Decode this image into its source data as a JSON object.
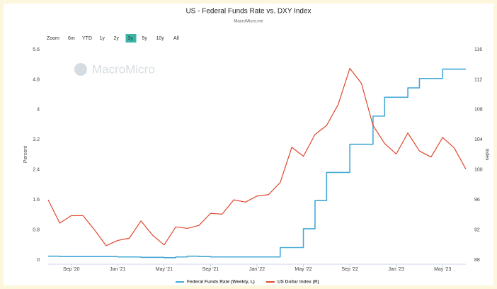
{
  "chart_data": {
    "type": "line",
    "title": "US - Federal Funds Rate vs. DXY Index",
    "subtitle": "MacroMicro.me",
    "watermark": "MacroMicro",
    "range_selector": {
      "label": "Zoom",
      "buttons": [
        "6m",
        "YTD",
        "1y",
        "2y",
        "3y",
        "5y",
        "10y",
        "All"
      ],
      "selected": 4,
      "selected_color": "#3ab5a5"
    },
    "ylabel": "Percent",
    "y2label": "Index",
    "x": [
      "2020-07",
      "2020-08",
      "2020-09",
      "2020-10",
      "2020-11",
      "2020-12",
      "2021-01",
      "2021-02",
      "2021-03",
      "2021-04",
      "2021-05",
      "2021-06",
      "2021-07",
      "2021-08",
      "2021-09",
      "2021-10",
      "2021-11",
      "2021-12",
      "2022-01",
      "2022-02",
      "2022-03",
      "2022-04",
      "2022-05",
      "2022-06",
      "2022-07",
      "2022-08",
      "2022-09",
      "2022-10",
      "2022-11",
      "2022-12",
      "2023-01",
      "2023-02",
      "2023-03",
      "2023-04",
      "2023-05",
      "2023-06",
      "2023-07"
    ],
    "xlim": [
      "2020-07",
      "2023-07"
    ],
    "xticks": [
      {
        "value": "2020-09",
        "label": "Sep '20"
      },
      {
        "value": "2021-01",
        "label": "Jan '21"
      },
      {
        "value": "2021-05",
        "label": "May '21"
      },
      {
        "value": "2021-09",
        "label": "Sep '21"
      },
      {
        "value": "2022-01",
        "label": "Jan '22"
      },
      {
        "value": "2022-05",
        "label": "May '22"
      },
      {
        "value": "2022-09",
        "label": "Sep '22"
      },
      {
        "value": "2023-01",
        "label": "Jan '23"
      },
      {
        "value": "2023-05",
        "label": "May '23"
      }
    ],
    "ylim": [
      0,
      5.6
    ],
    "yticks": [
      0,
      0.8,
      1.6,
      2.4,
      3.2,
      4,
      4.8,
      5.6
    ],
    "y2lim": [
      88,
      116
    ],
    "y2ticks": [
      88,
      92,
      96,
      100,
      104,
      108,
      112,
      116
    ],
    "grid": false,
    "series": [
      {
        "name": "Federal Funds Rate (Weekly, L)",
        "color": "#45a9d6",
        "axis": "y",
        "step": true,
        "values": [
          0.1,
          0.09,
          0.09,
          0.09,
          0.09,
          0.09,
          0.08,
          0.08,
          0.07,
          0.07,
          0.06,
          0.08,
          0.1,
          0.09,
          0.08,
          0.08,
          0.08,
          0.08,
          0.08,
          0.08,
          0.33,
          0.33,
          0.83,
          1.58,
          2.33,
          2.33,
          3.08,
          3.08,
          3.83,
          4.33,
          4.33,
          4.58,
          4.83,
          4.83,
          5.08,
          5.08,
          5.08
        ]
      },
      {
        "name": "US Dollar Index (R)",
        "color": "#e0472d",
        "axis": "y2",
        "step": false,
        "values": [
          96.0,
          92.9,
          93.9,
          93.9,
          92.0,
          89.9,
          90.6,
          90.9,
          93.2,
          91.3,
          90.0,
          92.4,
          92.2,
          92.6,
          94.2,
          94.1,
          96.0,
          95.7,
          96.5,
          96.7,
          98.3,
          103.0,
          101.8,
          104.7,
          105.9,
          108.7,
          113.5,
          111.5,
          105.9,
          103.5,
          102.1,
          104.9,
          102.5,
          101.7,
          104.3,
          102.9,
          100.1
        ]
      }
    ],
    "legend": "bottom"
  }
}
